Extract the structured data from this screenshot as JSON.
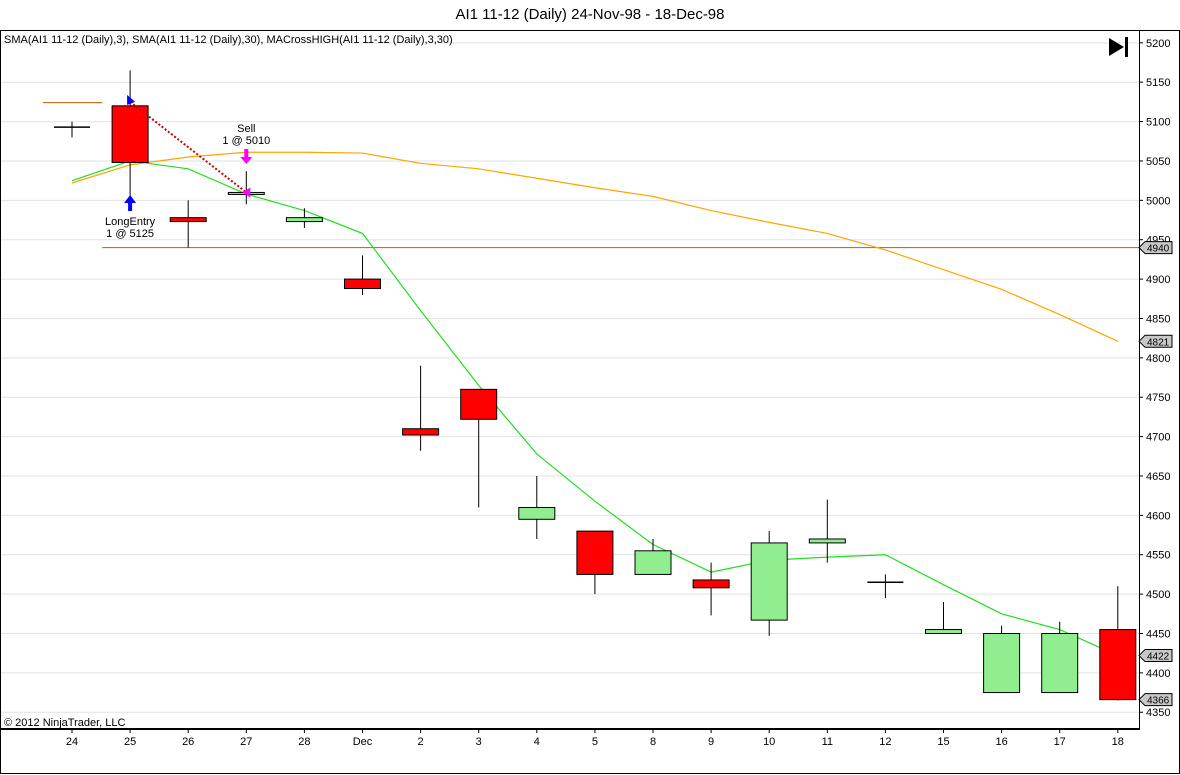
{
  "header": {
    "title": "AI1 11-12 (Daily)  24-Nov-98 - 18-Dec-98",
    "indicators": "SMA(AI1 11-12 (Daily),3), SMA(AI1 11-12 (Daily),30), MACrossHIGH(AI1 11-12 (Daily),3,30)",
    "copyright": "© 2012 NinjaTrader, LLC"
  },
  "colors": {
    "up": "#90ee90",
    "down": "#ff0000",
    "sma_fast": "#22dd22",
    "sma_slow": "#ffa500",
    "hline": "#cc5500",
    "long_arrow": "#0000ff",
    "sell_arrow": "#ff00ff",
    "trade_line": "#cc0000"
  },
  "chart_data": {
    "type": "candlestick",
    "x_labels": [
      "24",
      "25",
      "26",
      "27",
      "28",
      "Dec",
      "2",
      "3",
      "4",
      "5",
      "8",
      "9",
      "10",
      "11",
      "12",
      "15",
      "16",
      "17",
      "18"
    ],
    "ylim": [
      4330,
      5215
    ],
    "y_ticks": [
      5200,
      5150,
      5100,
      5050,
      5000,
      4950,
      4900,
      4850,
      4800,
      4750,
      4700,
      4650,
      4600,
      4550,
      4500,
      4450,
      4400,
      4350
    ],
    "grid": true,
    "ohlc": [
      {
        "o": 5093,
        "h": 5100,
        "l": 5080,
        "c": 5093
      },
      {
        "o": 5120,
        "h": 5165,
        "l": 5005,
        "c": 5048
      },
      {
        "o": 4978,
        "h": 5000,
        "l": 4940,
        "c": 4973
      },
      {
        "o": 5008,
        "h": 5037,
        "l": 4995,
        "c": 5010
      },
      {
        "o": 4973,
        "h": 4990,
        "l": 4965,
        "c": 4978
      },
      {
        "o": 4900,
        "h": 4930,
        "l": 4880,
        "c": 4888
      },
      {
        "o": 4710,
        "h": 4790,
        "l": 4682,
        "c": 4702
      },
      {
        "o": 4760,
        "h": 4760,
        "l": 4610,
        "c": 4722
      },
      {
        "o": 4595,
        "h": 4650,
        "l": 4570,
        "c": 4610
      },
      {
        "o": 4580,
        "h": 4580,
        "l": 4500,
        "c": 4525
      },
      {
        "o": 4525,
        "h": 4570,
        "l": 4525,
        "c": 4555
      },
      {
        "o": 4518,
        "h": 4540,
        "l": 4473,
        "c": 4508
      },
      {
        "o": 4467,
        "h": 4580,
        "l": 4447,
        "c": 4565
      },
      {
        "o": 4565,
        "h": 4620,
        "l": 4540,
        "c": 4570
      },
      {
        "o": 4515,
        "h": 4525,
        "l": 4495,
        "c": 4515
      },
      {
        "o": 4450,
        "h": 4490,
        "l": 4450,
        "c": 4455
      },
      {
        "o": 4375,
        "h": 4460,
        "l": 4375,
        "c": 4450
      },
      {
        "o": 4375,
        "h": 4465,
        "l": 4375,
        "c": 4450
      },
      {
        "o": 4455,
        "h": 4510,
        "l": 4365,
        "c": 4366
      }
    ],
    "series": [
      {
        "values": [
          5025,
          5050,
          5040,
          5008,
          4987,
          4958,
          4860,
          4765,
          4678,
          4618,
          4563,
          4528,
          4543,
          4547,
          4550,
          4512,
          4475,
          4455,
          4422
        ]
      },
      {
        "values": [
          5022,
          5045,
          5055,
          5061,
          5061,
          5060,
          5047,
          5040,
          5028,
          5016,
          5005,
          4987,
          4972,
          4958,
          4937,
          4912,
          4887,
          4855,
          4821
        ]
      }
    ],
    "hlines": [
      {
        "value": 4940,
        "from_index": 0.52,
        "label": "4940"
      },
      {
        "value": 5124,
        "from_index": -0.5,
        "to_index": 0.52
      }
    ],
    "price_tags": [
      {
        "value": 4940,
        "label": "4940"
      },
      {
        "value": 4821,
        "label": "4821"
      },
      {
        "value": 4422,
        "label": "4422"
      },
      {
        "value": 4366,
        "label": "4366"
      }
    ],
    "annotations": [
      {
        "kind": "long_entry",
        "index": 1,
        "price": 5125,
        "label1": "LongEntry",
        "label2": "1 @ 5125"
      },
      {
        "kind": "sell",
        "index": 3,
        "price": 5010,
        "label1": "Sell",
        "label2": "1 @ 5010"
      }
    ]
  }
}
